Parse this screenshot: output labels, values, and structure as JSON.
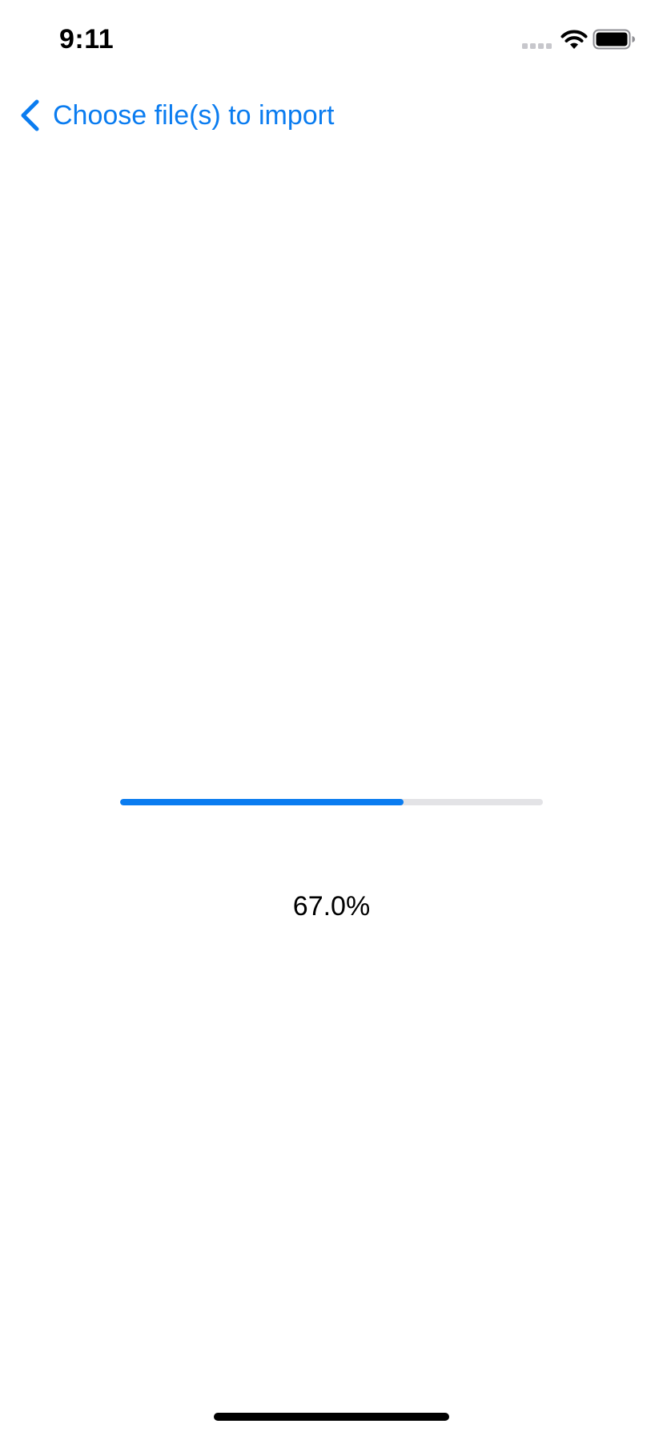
{
  "status_bar": {
    "time": "9:11",
    "icons": [
      "cellular-signal-icon",
      "wifi-icon",
      "battery-icon"
    ]
  },
  "nav": {
    "back_label": "Choose file(s) to import",
    "back_icon": "chevron-left-icon"
  },
  "progress": {
    "value": 0.67,
    "label": "67.0%"
  },
  "colors": {
    "accent": "#0A7CF0",
    "track": "#e3e3e6",
    "text": "#000000",
    "background": "#ffffff"
  }
}
